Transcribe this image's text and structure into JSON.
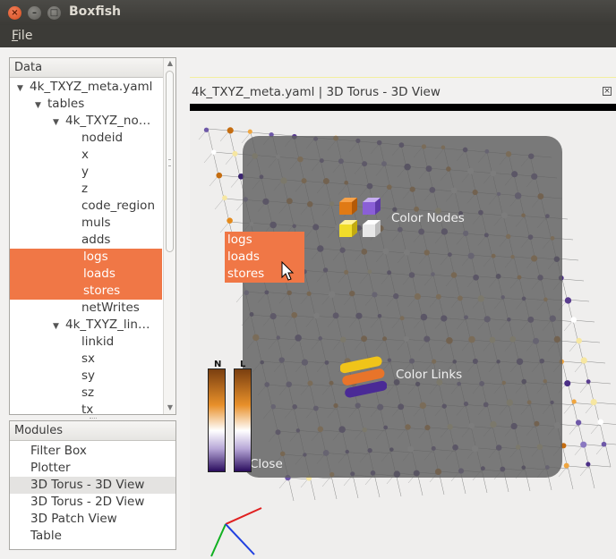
{
  "window": {
    "title": "Boxfish"
  },
  "menubar": {
    "items": [
      "File"
    ]
  },
  "data_panel": {
    "header": "Data",
    "tree": [
      {
        "label": "4k_TXYZ_meta.yaml",
        "level": 0,
        "expanded": true,
        "selected": false
      },
      {
        "label": "tables",
        "level": 1,
        "expanded": true,
        "selected": false
      },
      {
        "label": "4k_TXYZ_no…",
        "level": 2,
        "expanded": true,
        "selected": false
      },
      {
        "label": "nodeid",
        "level": 3,
        "selected": false
      },
      {
        "label": "x",
        "level": 3,
        "selected": false
      },
      {
        "label": "y",
        "level": 3,
        "selected": false
      },
      {
        "label": "z",
        "level": 3,
        "selected": false
      },
      {
        "label": "code_region",
        "level": 3,
        "selected": false
      },
      {
        "label": "muls",
        "level": 3,
        "selected": false
      },
      {
        "label": "adds",
        "level": 3,
        "selected": false
      },
      {
        "label": "logs",
        "level": 3,
        "selected": true
      },
      {
        "label": "loads",
        "level": 3,
        "selected": true
      },
      {
        "label": "stores",
        "level": 3,
        "selected": true
      },
      {
        "label": "netWrites",
        "level": 3,
        "selected": false
      },
      {
        "label": "4k_TXYZ_lin…",
        "level": 2,
        "expanded": true,
        "selected": false
      },
      {
        "label": "linkid",
        "level": 3,
        "selected": false
      },
      {
        "label": "sx",
        "level": 3,
        "selected": false
      },
      {
        "label": "sy",
        "level": 3,
        "selected": false
      },
      {
        "label": "sz",
        "level": 3,
        "selected": false
      },
      {
        "label": "tx",
        "level": 3,
        "selected": false
      }
    ]
  },
  "modules_panel": {
    "header": "Modules",
    "items": [
      {
        "label": "Filter Box",
        "selected": false
      },
      {
        "label": "Plotter",
        "selected": false
      },
      {
        "label": "3D Torus - 3D View",
        "selected": true
      },
      {
        "label": "3D Torus - 2D View",
        "selected": false
      },
      {
        "label": "3D Patch View",
        "selected": false
      },
      {
        "label": "Table",
        "selected": false
      }
    ]
  },
  "view": {
    "title": "4k_TXYZ_meta.yaml  |  3D Torus - 3D View",
    "overlay": {
      "color_nodes_label": "Color Nodes",
      "color_links_label": "Color Links",
      "close_label": "Close"
    },
    "drop_popup": [
      "logs",
      "loads",
      "stores"
    ],
    "colorbars": [
      {
        "label": "N"
      },
      {
        "label": "L"
      }
    ]
  },
  "colors": {
    "selection": "#f07746",
    "titlebar": "#3c3b37",
    "node_purple": "#5a3d8f",
    "node_orange": "#e48a1c"
  }
}
